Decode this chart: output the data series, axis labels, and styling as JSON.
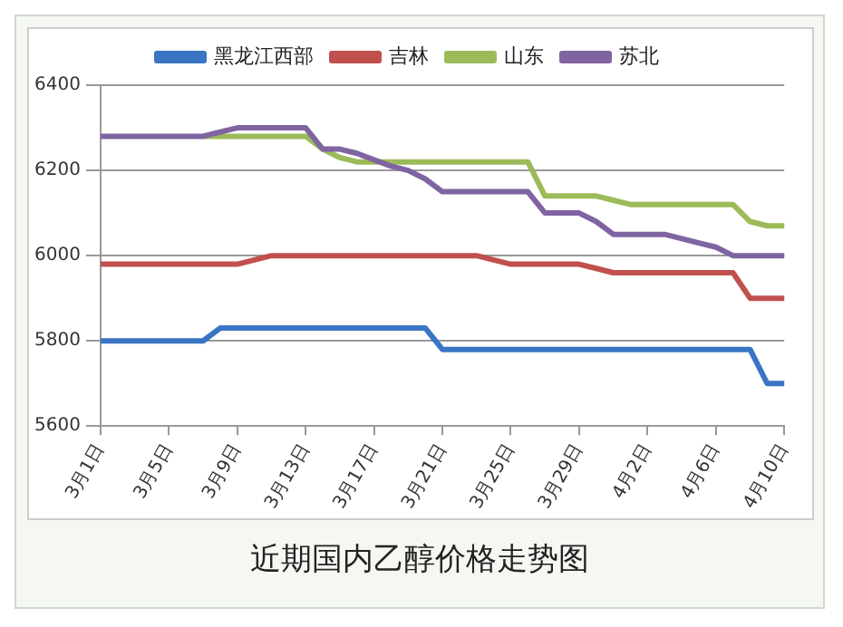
{
  "chart_data": {
    "type": "line",
    "title": "近期国内乙醇价格走势图",
    "categories": [
      "3月1日",
      null,
      null,
      null,
      "3月5日",
      null,
      null,
      null,
      "3月9日",
      null,
      null,
      null,
      "3月13日",
      null,
      null,
      null,
      "3月17日",
      null,
      null,
      null,
      "3月21日",
      null,
      null,
      null,
      "3月25日",
      null,
      null,
      null,
      "3月29日",
      null,
      null,
      null,
      "4月2日",
      null,
      null,
      null,
      "4月6日",
      null,
      null,
      null,
      "4月10日"
    ],
    "series": [
      {
        "name": "黑龙江西部",
        "color": "#3a75c4",
        "values": [
          5800,
          5800,
          5800,
          5800,
          5800,
          5800,
          5800,
          5830,
          5830,
          5830,
          5830,
          5830,
          5830,
          5830,
          5830,
          5830,
          5830,
          5830,
          5830,
          5830,
          5780,
          5780,
          5780,
          5780,
          5780,
          5780,
          5780,
          5780,
          5780,
          5780,
          5780,
          5780,
          5780,
          5780,
          5780,
          5780,
          5780,
          5780,
          5780,
          5700,
          5700
        ]
      },
      {
        "name": "吉林",
        "color": "#c0504d",
        "values": [
          5980,
          5980,
          5980,
          5980,
          5980,
          5980,
          5980,
          5980,
          5980,
          5990,
          6000,
          6000,
          6000,
          6000,
          6000,
          6000,
          6000,
          6000,
          6000,
          6000,
          6000,
          6000,
          6000,
          5990,
          5980,
          5980,
          5980,
          5980,
          5980,
          5970,
          5960,
          5960,
          5960,
          5960,
          5960,
          5960,
          5960,
          5960,
          5900,
          5900,
          5900
        ]
      },
      {
        "name": "山东",
        "color": "#9bbb59",
        "values": [
          null,
          null,
          null,
          null,
          null,
          null,
          6280,
          6280,
          6280,
          6280,
          6280,
          6280,
          6280,
          6250,
          6230,
          6220,
          6220,
          6220,
          6220,
          6220,
          6220,
          6220,
          6220,
          6220,
          6220,
          6220,
          6140,
          6140,
          6140,
          6140,
          6130,
          6120,
          6120,
          6120,
          6120,
          6120,
          6120,
          6120,
          6080,
          6070,
          6070
        ]
      },
      {
        "name": "苏北",
        "color": "#8064a2",
        "values": [
          6280,
          6280,
          6280,
          6280,
          6280,
          6280,
          6280,
          6290,
          6300,
          6300,
          6300,
          6300,
          6300,
          6250,
          6250,
          6240,
          6225,
          6210,
          6200,
          6180,
          6150,
          6150,
          6150,
          6150,
          6150,
          6150,
          6100,
          6100,
          6100,
          6080,
          6050,
          6050,
          6050,
          6050,
          6040,
          6030,
          6020,
          6000,
          6000,
          6000,
          6000
        ]
      }
    ],
    "ylim": [
      5600,
      6400
    ],
    "yticks": [
      5600,
      5800,
      6000,
      6200,
      6400
    ],
    "grid": "y",
    "legend": "top",
    "marker": "none",
    "line_style": "solid"
  }
}
